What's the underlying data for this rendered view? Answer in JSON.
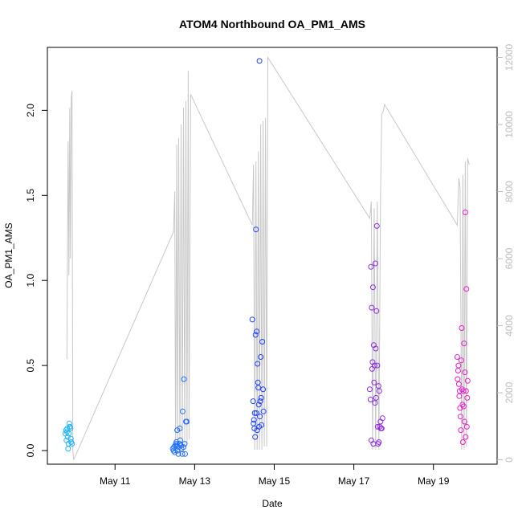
{
  "chart_data": {
    "type": "scatter",
    "title": "ATOM4 Northbound OA_PM1_AMS",
    "xlabel": "Date",
    "ylabel": "OA_PM1_AMS",
    "x_unit": "day of May (fractional)",
    "xlim": [
      9.3,
      20.6
    ],
    "ylim": [
      -0.08,
      2.37
    ],
    "x_ticks": [
      {
        "value": 11,
        "label": "May 11"
      },
      {
        "value": 13,
        "label": "May 13"
      },
      {
        "value": 15,
        "label": "May 15"
      },
      {
        "value": 17,
        "label": "May 17"
      },
      {
        "value": 19,
        "label": "May 19"
      }
    ],
    "y_ticks": [
      {
        "value": 0.0,
        "label": "0.0"
      },
      {
        "value": 0.5,
        "label": "0.5"
      },
      {
        "value": 1.0,
        "label": "1.0"
      },
      {
        "value": 1.5,
        "label": "1.5"
      },
      {
        "value": 2.0,
        "label": "2.0"
      }
    ],
    "secondary_axis": {
      "side": "right",
      "color": "#bdbdbd",
      "ylim": [
        -130,
        12300
      ],
      "ticks": [
        {
          "value": 0,
          "label": "0"
        },
        {
          "value": 2000,
          "label": "2000"
        },
        {
          "value": 4000,
          "label": "4000"
        },
        {
          "value": 6000,
          "label": "6000"
        },
        {
          "value": 8000,
          "label": "8000"
        },
        {
          "value": 10000,
          "label": "10000"
        },
        {
          "value": 12000,
          "label": "12000"
        }
      ]
    },
    "line_color": "#c8c8c8",
    "point_color_start": "#29b6f6",
    "point_color_mid": "#1e3cff",
    "point_color_end": "#e91ec8",
    "secondary_line": [
      [
        9.79,
        3000
      ],
      [
        9.82,
        9500
      ],
      [
        9.84,
        5500
      ],
      [
        9.86,
        10500
      ],
      [
        9.88,
        6000
      ],
      [
        9.9,
        10800
      ],
      [
        9.92,
        11000
      ],
      [
        9.94,
        300
      ],
      [
        9.96,
        0
      ],
      [
        12.47,
        6800
      ],
      [
        12.5,
        8000
      ],
      [
        12.52,
        200
      ],
      [
        12.55,
        9400
      ],
      [
        12.57,
        200
      ],
      [
        12.6,
        9600
      ],
      [
        12.63,
        200
      ],
      [
        12.66,
        10000
      ],
      [
        12.69,
        300
      ],
      [
        12.72,
        10500
      ],
      [
        12.75,
        400
      ],
      [
        12.78,
        10700
      ],
      [
        12.81,
        500
      ],
      [
        12.84,
        11600
      ],
      [
        12.86,
        600
      ],
      [
        12.9,
        10900
      ],
      [
        14.45,
        7000
      ],
      [
        14.48,
        8800
      ],
      [
        14.51,
        300
      ],
      [
        14.54,
        8900
      ],
      [
        14.57,
        300
      ],
      [
        14.6,
        9200
      ],
      [
        14.63,
        300
      ],
      [
        14.66,
        10000
      ],
      [
        14.69,
        300
      ],
      [
        14.72,
        10100
      ],
      [
        14.75,
        400
      ],
      [
        14.78,
        10200
      ],
      [
        14.81,
        400
      ],
      [
        14.84,
        12000
      ],
      [
        17.4,
        7200
      ],
      [
        17.44,
        7700
      ],
      [
        17.47,
        300
      ],
      [
        17.51,
        7500
      ],
      [
        17.55,
        300
      ],
      [
        17.59,
        7700
      ],
      [
        17.63,
        300
      ],
      [
        17.67,
        7800
      ],
      [
        17.7,
        10300
      ],
      [
        17.74,
        10400
      ],
      [
        17.77,
        10600
      ],
      [
        19.6,
        7000
      ],
      [
        19.64,
        8400
      ],
      [
        19.67,
        8100
      ],
      [
        19.71,
        300
      ],
      [
        19.74,
        8500
      ],
      [
        19.77,
        300
      ],
      [
        19.8,
        8900
      ],
      [
        19.83,
        400
      ],
      [
        19.86,
        9000
      ],
      [
        19.9,
        8800
      ]
    ],
    "points": [
      [
        9.75,
        0.1
      ],
      [
        9.77,
        0.12
      ],
      [
        9.78,
        0.06
      ],
      [
        9.79,
        0.11
      ],
      [
        9.8,
        0.13
      ],
      [
        9.81,
        0.08
      ],
      [
        9.82,
        0.01
      ],
      [
        9.83,
        0.04
      ],
      [
        9.84,
        0.1
      ],
      [
        9.85,
        0.16
      ],
      [
        9.86,
        0.14
      ],
      [
        9.87,
        0.14
      ],
      [
        9.88,
        0.13
      ],
      [
        9.89,
        0.07
      ],
      [
        9.9,
        0.05
      ],
      [
        9.92,
        0.04
      ],
      [
        12.45,
        0.01
      ],
      [
        12.47,
        0.0
      ],
      [
        12.48,
        0.02
      ],
      [
        12.5,
        -0.01
      ],
      [
        12.51,
        0.03
      ],
      [
        12.53,
        0.04
      ],
      [
        12.54,
        0.05
      ],
      [
        12.55,
        0.03
      ],
      [
        12.56,
        0.12
      ],
      [
        12.57,
        0.0
      ],
      [
        12.59,
        -0.02
      ],
      [
        12.6,
        0.02
      ],
      [
        12.62,
        0.04
      ],
      [
        12.63,
        0.13
      ],
      [
        12.64,
        0.06
      ],
      [
        12.66,
        0.03
      ],
      [
        12.67,
        0.01
      ],
      [
        12.69,
        -0.02
      ],
      [
        12.7,
        0.23
      ],
      [
        12.72,
        0.02
      ],
      [
        12.73,
        0.42
      ],
      [
        12.75,
        0.04
      ],
      [
        12.76,
        -0.02
      ],
      [
        12.78,
        0.17
      ],
      [
        12.8,
        0.17
      ],
      [
        14.45,
        0.77
      ],
      [
        14.47,
        0.29
      ],
      [
        14.48,
        0.16
      ],
      [
        14.49,
        0.18
      ],
      [
        14.5,
        0.13
      ],
      [
        14.51,
        0.22
      ],
      [
        14.52,
        0.08
      ],
      [
        14.53,
        0.68
      ],
      [
        14.54,
        1.3
      ],
      [
        14.55,
        0.22
      ],
      [
        14.56,
        0.7
      ],
      [
        14.57,
        0.12
      ],
      [
        14.58,
        0.51
      ],
      [
        14.59,
        0.4
      ],
      [
        14.6,
        0.37
      ],
      [
        14.61,
        0.27
      ],
      [
        14.62,
        0.14
      ],
      [
        14.63,
        2.29
      ],
      [
        14.64,
        0.2
      ],
      [
        14.65,
        0.29
      ],
      [
        14.66,
        0.55
      ],
      [
        14.67,
        0.31
      ],
      [
        14.68,
        0.15
      ],
      [
        14.7,
        0.64
      ],
      [
        14.72,
        0.36
      ],
      [
        14.73,
        0.23
      ],
      [
        17.4,
        0.36
      ],
      [
        17.42,
        0.3
      ],
      [
        17.43,
        1.08
      ],
      [
        17.44,
        0.06
      ],
      [
        17.45,
        0.84
      ],
      [
        17.46,
        0.48
      ],
      [
        17.47,
        0.52
      ],
      [
        17.48,
        0.96
      ],
      [
        17.49,
        0.04
      ],
      [
        17.5,
        0.62
      ],
      [
        17.51,
        0.4
      ],
      [
        17.52,
        0.5
      ],
      [
        17.53,
        0.28
      ],
      [
        17.54,
        1.1
      ],
      [
        17.55,
        0.6
      ],
      [
        17.56,
        0.31
      ],
      [
        17.57,
        0.82
      ],
      [
        17.58,
        1.32
      ],
      [
        17.59,
        0.5
      ],
      [
        17.6,
        0.14
      ],
      [
        17.61,
        0.04
      ],
      [
        17.62,
        0.38
      ],
      [
        17.63,
        0.05
      ],
      [
        17.64,
        0.35
      ],
      [
        17.65,
        0.14
      ],
      [
        17.67,
        0.17
      ],
      [
        17.68,
        0.13
      ],
      [
        17.7,
        0.13
      ],
      [
        17.72,
        0.19
      ],
      [
        19.6,
        0.55
      ],
      [
        19.61,
        0.42
      ],
      [
        19.62,
        0.47
      ],
      [
        19.63,
        0.5
      ],
      [
        19.64,
        0.39
      ],
      [
        19.65,
        0.32
      ],
      [
        19.66,
        0.35
      ],
      [
        19.67,
        0.25
      ],
      [
        19.68,
        0.2
      ],
      [
        19.69,
        0.12
      ],
      [
        19.7,
        0.53
      ],
      [
        19.71,
        0.72
      ],
      [
        19.72,
        0.36
      ],
      [
        19.73,
        0.27
      ],
      [
        19.74,
        0.05
      ],
      [
        19.75,
        0.35
      ],
      [
        19.76,
        0.26
      ],
      [
        19.77,
        0.63
      ],
      [
        19.78,
        0.17
      ],
      [
        19.79,
        0.46
      ],
      [
        19.8,
        1.4
      ],
      [
        19.81,
        0.08
      ],
      [
        19.82,
        0.35
      ],
      [
        19.83,
        0.95
      ],
      [
        19.84,
        0.14
      ],
      [
        19.85,
        0.31
      ],
      [
        19.86,
        0.41
      ]
    ]
  }
}
